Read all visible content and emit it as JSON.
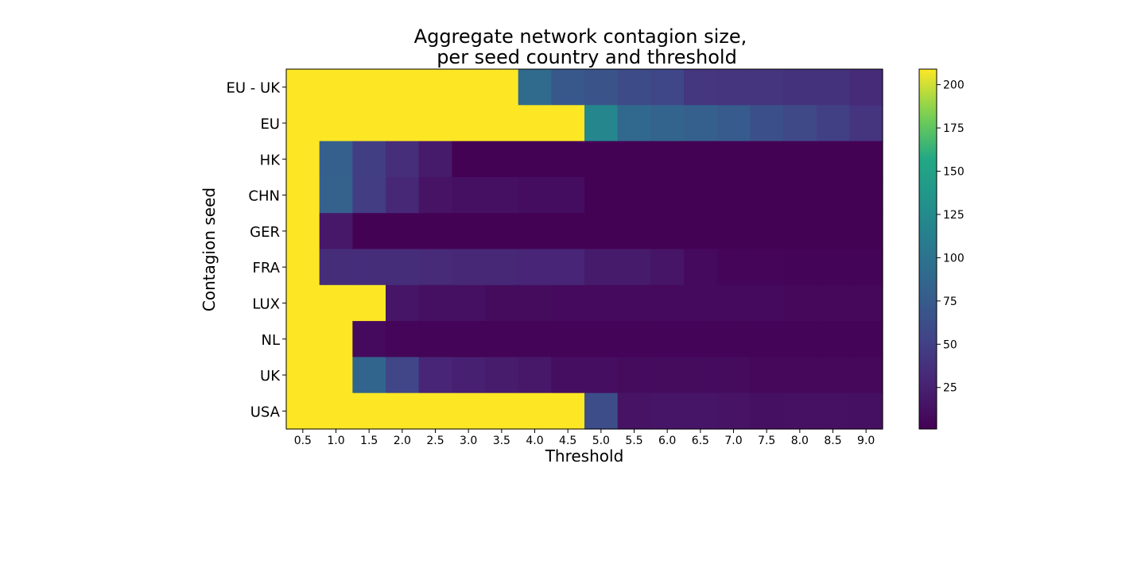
{
  "chart_data": {
    "type": "heatmap",
    "title_line1": "Aggregate network contagion size,",
    "title_line2": "per seed country and threshold",
    "xlabel": "Threshold",
    "ylabel": "Contagion seed",
    "x": [
      "0.5",
      "1.0",
      "1.5",
      "2.0",
      "2.5",
      "3.0",
      "3.5",
      "4.0",
      "4.5",
      "5.0",
      "5.5",
      "6.0",
      "6.5",
      "7.0",
      "7.5",
      "8.0",
      "8.5",
      "9.0"
    ],
    "y": [
      "EU - UK",
      "EU",
      "HK",
      "CHN",
      "GER",
      "FRA",
      "LUX",
      "NL",
      "UK",
      "USA"
    ],
    "values": [
      [
        209,
        209,
        209,
        209,
        209,
        209,
        209,
        90,
        72,
        68,
        60,
        56,
        42,
        40,
        40,
        38,
        38,
        33
      ],
      [
        209,
        209,
        209,
        209,
        209,
        209,
        209,
        209,
        209,
        120,
        88,
        84,
        80,
        75,
        65,
        58,
        50,
        40
      ],
      [
        209,
        80,
        48,
        35,
        20,
        2,
        2,
        2,
        2,
        2,
        2,
        2,
        2,
        2,
        2,
        2,
        2,
        2
      ],
      [
        209,
        82,
        47,
        30,
        14,
        12,
        12,
        10,
        10,
        2,
        2,
        2,
        2,
        2,
        2,
        2,
        2,
        2
      ],
      [
        209,
        18,
        2,
        2,
        2,
        2,
        2,
        2,
        2,
        2,
        2,
        2,
        2,
        2,
        2,
        2,
        2,
        2
      ],
      [
        209,
        34,
        34,
        34,
        32,
        30,
        30,
        28,
        28,
        20,
        20,
        16,
        8,
        5,
        5,
        3,
        3,
        3
      ],
      [
        209,
        209,
        209,
        16,
        12,
        12,
        9,
        9,
        8,
        8,
        8,
        8,
        8,
        8,
        8,
        6,
        6,
        6
      ],
      [
        209,
        209,
        8,
        5,
        3,
        3,
        3,
        3,
        3,
        3,
        3,
        3,
        3,
        3,
        3,
        3,
        3,
        3
      ],
      [
        209,
        209,
        85,
        55,
        28,
        24,
        21,
        18,
        11,
        11,
        9,
        9,
        9,
        9,
        6,
        6,
        6,
        6
      ],
      [
        209,
        209,
        209,
        209,
        209,
        209,
        209,
        209,
        209,
        62,
        14,
        16,
        16,
        14,
        12,
        13,
        13,
        12
      ]
    ],
    "colorbar": {
      "vmin": 1,
      "vmax": 209,
      "ticks": [
        25,
        50,
        75,
        100,
        125,
        150,
        175,
        200
      ],
      "colormap": "viridis"
    }
  }
}
